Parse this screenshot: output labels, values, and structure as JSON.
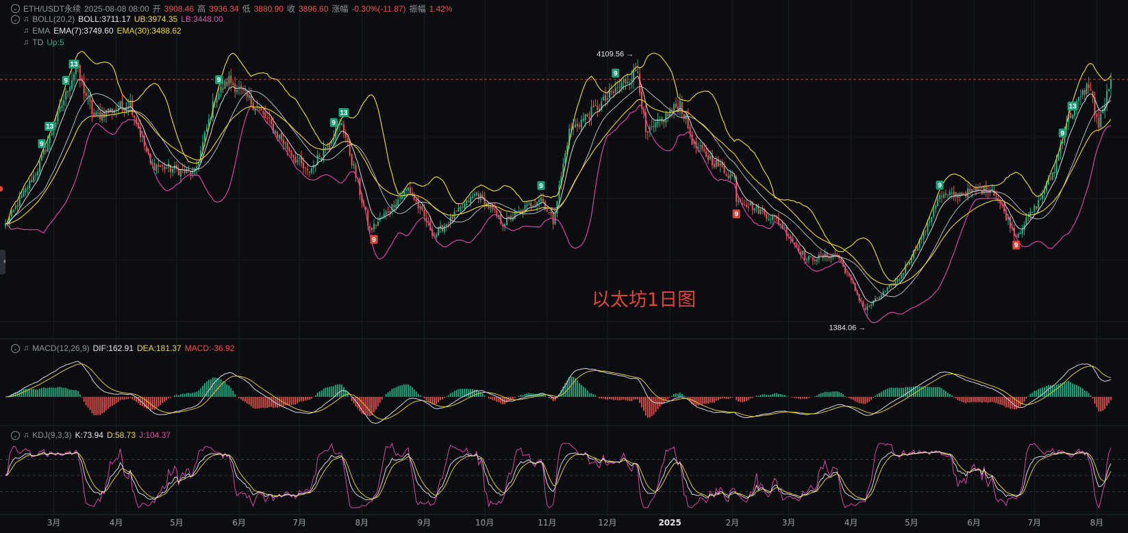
{
  "ticker": {
    "symbol": "ETH/USDT永续",
    "datetime": "2025-08-08 08:00",
    "open_label": "开",
    "open": "3908.46",
    "high_label": "高",
    "high": "3936.34",
    "low_label": "低",
    "low": "3880.90",
    "close_label": "收",
    "close": "3896.60",
    "change_label": "涨幅",
    "change": "-0.30%(-11.87)",
    "amp_label": "振幅",
    "amp": "1.42%"
  },
  "indicators": {
    "boll": {
      "name": "BOLL(20,2)",
      "mid": "BOLL:3711.17",
      "ub": "UB:3974.35",
      "lb": "LB:3448.00"
    },
    "ema": {
      "name": "EMA",
      "ema7": "EMA(7):3749.60",
      "ema30": "EMA(30):3488.62"
    },
    "td": {
      "name": "TD",
      "up": "Up:5"
    },
    "macd": {
      "name": "MACD(12,26,9)",
      "dif": "DIF:162.91",
      "dea": "DEA:181.37",
      "macd": "MACD:-36.92"
    },
    "kdj": {
      "name": "KDJ(9,3,3)",
      "k": "K:73.94",
      "d": "D:58.73",
      "j": "J:104.37"
    }
  },
  "chart_title": "以太坊1日图",
  "annotations": {
    "high": "4109.56",
    "low": "1384.06"
  },
  "colors": {
    "up": "#1fb58a",
    "down": "#f0524d",
    "boll_band": "#e8d23a",
    "boll_lb": "#d945a8",
    "ema_white": "#d9dbe0",
    "ema_gray": "#b7bac0",
    "price_line": "#e0443e"
  },
  "chart_data": {
    "type": "candlestick",
    "interval": "1D",
    "x_tick_labels": [
      "3月",
      "4月",
      "5月",
      "6月",
      "7月",
      "8月",
      "9月",
      "10月",
      "11月",
      "12月",
      "2025",
      "2月",
      "3月",
      "4月",
      "5月",
      "6月",
      "7月",
      "8月"
    ],
    "x_ticks": [
      "2024-03-01",
      "2024-04-01",
      "2024-05-01",
      "2024-06-01",
      "2024-07-01",
      "2024-08-01",
      "2024-09-01",
      "2024-10-01",
      "2024-11-01",
      "2024-12-01",
      "2025-01-01",
      "2025-02-01",
      "2025-03-01",
      "2025-04-01",
      "2025-05-01",
      "2025-06-01",
      "2025-07-01",
      "2025-08-01"
    ],
    "date_start": "2024-02-06",
    "date_end": "2025-08-08",
    "price_range": [
      1200,
      4300
    ],
    "current_price": 3896.6,
    "close_anchors": [
      [
        "2024-02-06",
        2360
      ],
      [
        "2024-02-22",
        2950
      ],
      [
        "2024-03-12",
        4020
      ],
      [
        "2024-03-21",
        3500
      ],
      [
        "2024-04-08",
        3650
      ],
      [
        "2024-04-18",
        3000
      ],
      [
        "2024-05-10",
        2900
      ],
      [
        "2024-05-20",
        3700
      ],
      [
        "2024-05-27",
        3890
      ],
      [
        "2024-06-10",
        3600
      ],
      [
        "2024-07-05",
        2900
      ],
      [
        "2024-07-22",
        3450
      ],
      [
        "2024-08-05",
        2300
      ],
      [
        "2024-08-24",
        2750
      ],
      [
        "2024-09-06",
        2250
      ],
      [
        "2024-09-27",
        2700
      ],
      [
        "2024-10-10",
        2380
      ],
      [
        "2024-10-29",
        2650
      ],
      [
        "2024-11-04",
        2400
      ],
      [
        "2024-11-12",
        3350
      ],
      [
        "2024-12-01",
        3700
      ],
      [
        "2024-12-16",
        4000
      ],
      [
        "2024-12-20",
        3300
      ],
      [
        "2025-01-06",
        3650
      ],
      [
        "2025-01-13",
        3200
      ],
      [
        "2025-02-02",
        2850
      ],
      [
        "2025-02-03",
        2650
      ],
      [
        "2025-02-24",
        2400
      ],
      [
        "2025-03-10",
        2000
      ],
      [
        "2025-03-25",
        2050
      ],
      [
        "2025-04-08",
        1470
      ],
      [
        "2025-04-25",
        1800
      ],
      [
        "2025-05-09",
        2350
      ],
      [
        "2025-05-14",
        2650
      ],
      [
        "2025-06-10",
        2750
      ],
      [
        "2025-06-22",
        2250
      ],
      [
        "2025-07-03",
        2600
      ],
      [
        "2025-07-11",
        2950
      ],
      [
        "2025-07-17",
        3450
      ],
      [
        "2025-07-28",
        3850
      ],
      [
        "2025-08-02",
        3400
      ],
      [
        "2025-08-08",
        3896.6
      ]
    ],
    "high_mark": {
      "date": "2024-12-16",
      "value": 4109.56
    },
    "low_mark": {
      "date": "2025-04-09",
      "value": 1384.06
    },
    "td_marks": [
      {
        "date": "2024-02-24",
        "label": "9",
        "side": "top"
      },
      {
        "date": "2024-02-28",
        "label": "13",
        "side": "top"
      },
      {
        "date": "2024-03-07",
        "label": "9",
        "side": "top"
      },
      {
        "date": "2024-03-11",
        "label": "13",
        "side": "top"
      },
      {
        "date": "2024-05-22",
        "label": "9",
        "side": "top"
      },
      {
        "date": "2024-07-18",
        "label": "9",
        "side": "top"
      },
      {
        "date": "2024-07-23",
        "label": "13",
        "side": "top"
      },
      {
        "date": "2024-08-07",
        "label": "9",
        "side": "bottom"
      },
      {
        "date": "2024-10-29",
        "label": "9",
        "side": "top"
      },
      {
        "date": "2024-12-05",
        "label": "9",
        "side": "top"
      },
      {
        "date": "2025-02-03",
        "label": "9",
        "side": "bottom"
      },
      {
        "date": "2025-05-15",
        "label": "9",
        "side": "top"
      },
      {
        "date": "2025-06-22",
        "label": "9",
        "side": "bottom"
      },
      {
        "date": "2025-07-15",
        "label": "9",
        "side": "top"
      },
      {
        "date": "2025-07-20",
        "label": "13",
        "side": "top"
      }
    ]
  }
}
